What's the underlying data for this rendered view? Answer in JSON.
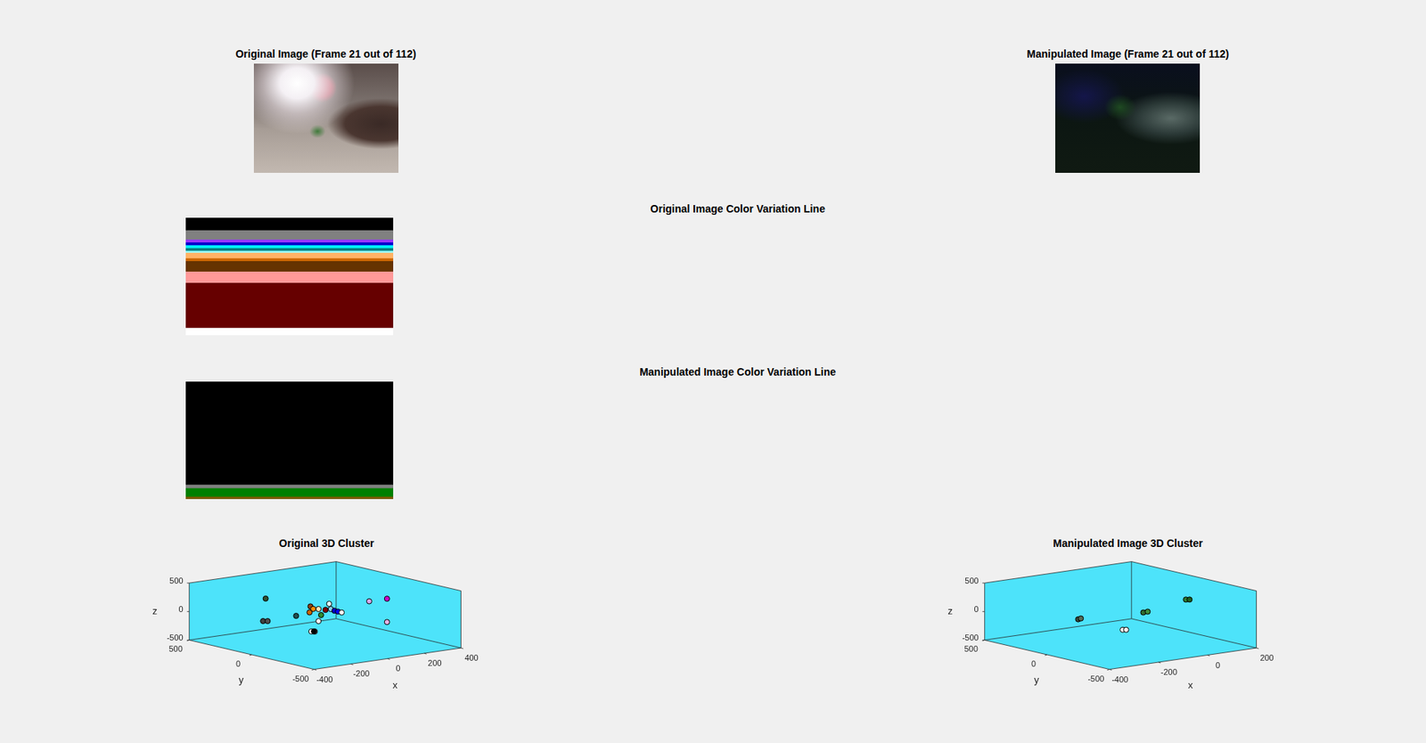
{
  "images": [
    {
      "title": "Original Image (Frame 21 out of 112)"
    },
    {
      "title": "Manipulated Image (Frame 21 out of 112)"
    }
  ],
  "chart_data": [
    {
      "type": "bar",
      "title": "Original Image Color Variation Line",
      "stacked": true,
      "tick_labels": false,
      "categories": [
        null
      ],
      "ylim": [
        0,
        125
      ],
      "series": [
        {
          "color": "#000000",
          "values": [
            13
          ]
        },
        {
          "color": "#808080",
          "values": [
            10
          ]
        },
        {
          "color": "#9933ff",
          "values": [
            3
          ]
        },
        {
          "color": "#0000cc",
          "values": [
            3
          ]
        },
        {
          "color": "#00ffff",
          "values": [
            3
          ]
        },
        {
          "color": "#008080",
          "values": [
            3
          ]
        },
        {
          "color": "#99ffff",
          "values": [
            2
          ]
        },
        {
          "color": "#ffb366",
          "values": [
            6
          ]
        },
        {
          "color": "#cc6600",
          "values": [
            3
          ]
        },
        {
          "color": "#663300",
          "values": [
            11
          ]
        },
        {
          "color": "#ff9999",
          "values": [
            12
          ]
        },
        {
          "color": "#660000",
          "values": [
            48
          ]
        },
        {
          "color": "#ffffff",
          "values": [
            8
          ]
        }
      ]
    },
    {
      "type": "bar",
      "title": "Manipulated Image Color Variation Line",
      "stacked": true,
      "tick_labels": false,
      "categories": [
        null
      ],
      "ylim": [
        0,
        128
      ],
      "series": [
        {
          "color": "#000000",
          "values": [
            112
          ]
        },
        {
          "color": "#808080",
          "values": [
            4
          ]
        },
        {
          "color": "#008000",
          "values": [
            9
          ]
        },
        {
          "color": "#7a5c00",
          "values": [
            3
          ]
        }
      ]
    },
    {
      "type": "scatter3d",
      "title": "Original 3D Cluster",
      "xlabel": "x",
      "ylabel": "y",
      "zlabel": "z",
      "xlim": [
        -400,
        400
      ],
      "ylim": [
        -500,
        500
      ],
      "zlim": [
        -500,
        500
      ],
      "xticks": [
        -400,
        -200,
        0,
        200,
        400
      ],
      "yticks": [
        -500,
        0,
        500
      ],
      "zticks": [
        -500,
        0,
        500
      ],
      "x": [
        -256,
        -202,
        -177,
        -158,
        -148,
        -133,
        -153,
        -22,
        -36,
        22,
        2,
        31,
        51,
        70,
        90,
        240,
        337,
        337,
        -36,
        -75,
        -56,
        -61
      ],
      "y": [
        100,
        200,
        200,
        0,
        -100,
        -100,
        -100,
        0,
        0,
        0,
        0,
        0,
        0,
        0,
        0,
        0,
        0,
        0,
        0,
        0,
        0,
        0
      ],
      "z": [
        365,
        -106,
        -118,
        67,
        280,
        229,
        177,
        18,
        130,
        194,
        97,
        98,
        59,
        35,
        10,
        136,
        136,
        -273,
        -82,
        -245,
        -255,
        -250
      ],
      "colors": [
        "#2f4f2f",
        "#404040",
        "#505050",
        "#1f4f4f",
        "#8b4513",
        "#ff8c00",
        "#cc6600",
        "#2e8b2e",
        "#ffe4b5",
        "#e0ffff",
        "#800000",
        "#87ceeb",
        "#0000cd",
        "#0000ff",
        "#ffffff",
        "#d8a8f0",
        "#cc00cc",
        "#e6b3e6",
        "#f5f5f5",
        "#ffffff",
        "#ffffff",
        "#000000"
      ]
    },
    {
      "type": "scatter3d",
      "title": "Manipulated Image 3D Cluster",
      "xlabel": "x",
      "ylabel": "y",
      "zlabel": "z",
      "xlim": [
        -400,
        200
      ],
      "ylim": [
        -500,
        500
      ],
      "zlim": [
        -500,
        500
      ],
      "xticks": [
        -400,
        -200,
        0,
        200
      ],
      "yticks": [
        -500,
        0,
        500
      ],
      "zticks": [
        -500,
        0,
        500
      ],
      "x": [
        -273,
        -262,
        -7,
        11,
        167,
        182,
        -91,
        -77
      ],
      "y": [
        0,
        0,
        0,
        0,
        0,
        0,
        0,
        0
      ],
      "z": [
        41,
        49,
        -6,
        -2,
        112,
        103,
        -256,
        -265
      ],
      "colors": [
        "#3a4a3a",
        "#556b55",
        "#2e6b2e",
        "#3c8c3c",
        "#2d7a2d",
        "#1f5f1f",
        "#ffffff",
        "#f0f0f0"
      ]
    }
  ]
}
